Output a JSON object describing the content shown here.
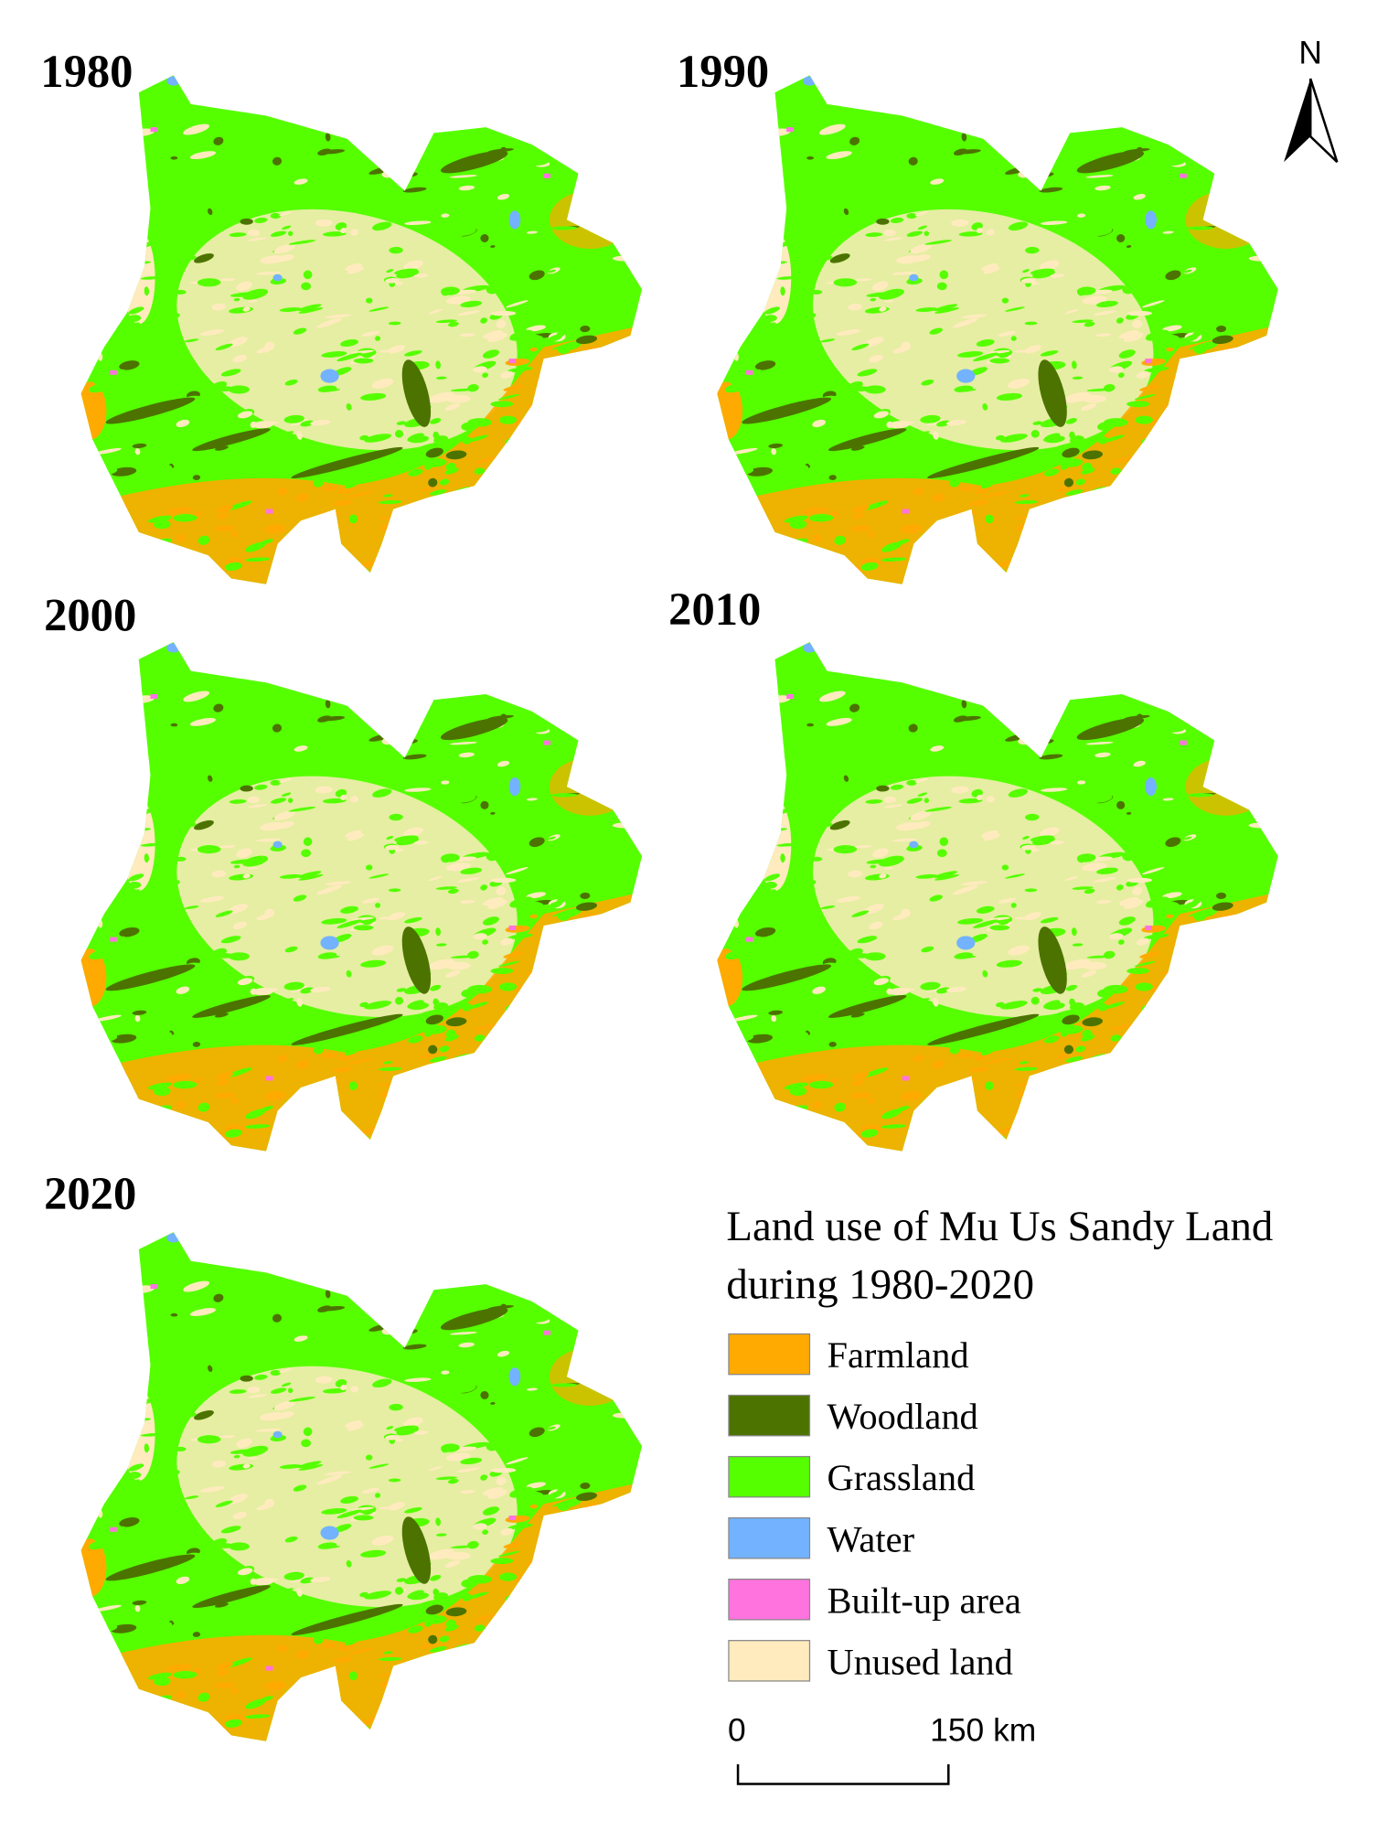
{
  "panels": [
    {
      "year": "1980"
    },
    {
      "year": "1990"
    },
    {
      "year": "2000"
    },
    {
      "year": "2010"
    },
    {
      "year": "2020"
    }
  ],
  "legend": {
    "title_lines": [
      "Land use of Mu Us Sandy Land",
      "during 1980-2020"
    ],
    "items": [
      {
        "label": "Farmland",
        "color": "#ffaa00"
      },
      {
        "label": "Woodland",
        "color": "#4c7300"
      },
      {
        "label": "Grassland",
        "color": "#55ff00"
      },
      {
        "label": "Water",
        "color": "#73b2ff"
      },
      {
        "label": "Built-up area",
        "color": "#ff73df"
      },
      {
        "label": "Unused land",
        "color": "#ffebbe"
      }
    ]
  },
  "scale_bar": {
    "labels": [
      "0",
      "150 km"
    ]
  },
  "north_arrow": {
    "label": "N"
  }
}
